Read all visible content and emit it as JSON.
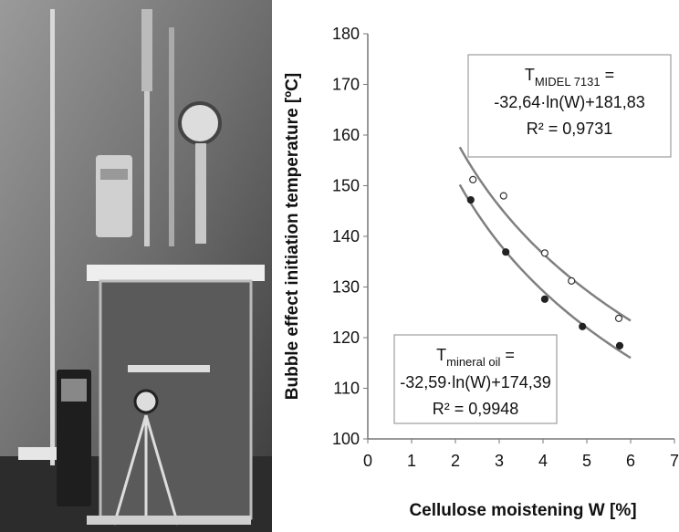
{
  "chart_data": {
    "type": "scatter",
    "xlabel": "Cellulose moistening W [%]",
    "ylabel": "Bubble effect initiation temperature [ºC]",
    "xlim": [
      0,
      7
    ],
    "xticks": [
      0,
      1,
      2,
      3,
      4,
      5,
      6,
      7
    ],
    "ylim": [
      100,
      180
    ],
    "yticks": [
      100,
      110,
      120,
      130,
      140,
      150,
      160,
      170,
      180
    ],
    "series": [
      {
        "name": "MIDEL 7131",
        "marker": "open",
        "color": "#333333",
        "line_color": "#808080",
        "x": [
          2.4,
          3.1,
          4.04,
          4.65,
          5.73
        ],
        "values": [
          151.2,
          148,
          136.7,
          131.2,
          123.8
        ],
        "trendline": {
          "a": -32.64,
          "b": 181.83,
          "xrange": [
            2.1,
            6
          ]
        },
        "annotation": {
          "symbol": "T",
          "equals": " =",
          "equation": "-32,64·ln(W)+181,83",
          "r2": "R² = 0,9731"
        }
      },
      {
        "name": "mineral oil",
        "marker": "filled",
        "color": "#222222",
        "line_color": "#808080",
        "x": [
          2.35,
          3.15,
          4.04,
          4.9,
          5.75
        ],
        "values": [
          147.2,
          136.9,
          127.6,
          122.2,
          118.4
        ],
        "trendline": {
          "a": -32.59,
          "b": 174.39,
          "xrange": [
            2.1,
            6
          ]
        },
        "annotation": {
          "symbol": "T",
          "equals": " =",
          "equation": "-32,59·ln(W)+174,39",
          "r2": "R² = 0,9948"
        }
      }
    ]
  }
}
